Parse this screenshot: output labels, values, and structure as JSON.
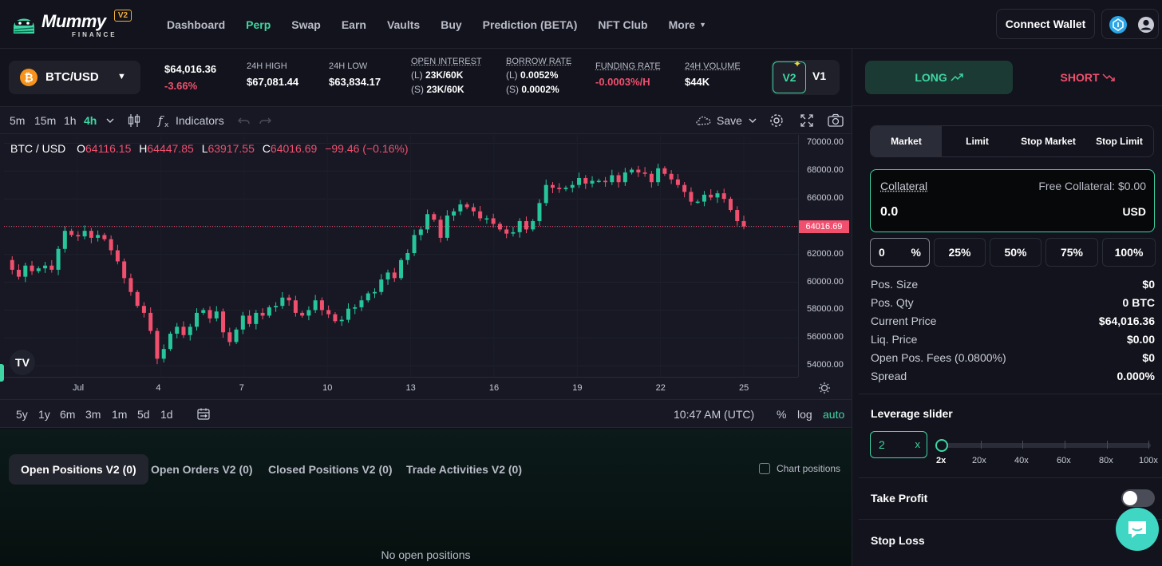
{
  "brand": {
    "name": "Mummy",
    "sub": "FINANCE",
    "badge": "V2"
  },
  "nav": {
    "items": [
      {
        "label": "Dashboard"
      },
      {
        "label": "Perp",
        "active": true
      },
      {
        "label": "Swap"
      },
      {
        "label": "Earn"
      },
      {
        "label": "Vaults"
      },
      {
        "label": "Buy"
      },
      {
        "label": "Prediction (BETA)"
      },
      {
        "label": "NFT Club"
      },
      {
        "label": "More"
      }
    ],
    "connect_label": "Connect Wallet"
  },
  "ticker": {
    "pair": "BTC/USD",
    "price": "$64,016.36",
    "change": "-3.66%",
    "high_label": "24H HIGH",
    "high": "$67,081.44",
    "low_label": "24H LOW",
    "low": "$63,834.17",
    "oi_label": "OPEN INTEREST",
    "oi_long_prefix": "(L)",
    "oi_long": "23K/60K",
    "oi_short_prefix": "(S)",
    "oi_short": "23K/60K",
    "borrow_label": "BORROW RATE",
    "borrow_long_prefix": "(L)",
    "borrow_long": "0.0052%",
    "borrow_short_prefix": "(S)",
    "borrow_short": "0.0002%",
    "funding_label": "FUNDING RATE",
    "funding": "-0.0003%/H",
    "volume_label": "24H VOLUME",
    "volume": "$44K",
    "version_active": "V2",
    "version_other": "V1"
  },
  "chart_toolbar": {
    "timeframes": [
      "5m",
      "15m",
      "1h",
      "4h"
    ],
    "active_timeframe": "4h",
    "indicators_label": "Indicators",
    "save_label": "Save"
  },
  "chart_data": {
    "type": "candlestick",
    "symbol": "BTC / USD",
    "ohlc_legend": {
      "o_label": "O",
      "o": "64116.15",
      "h_label": "H",
      "h": "64447.85",
      "l_label": "L",
      "l": "63917.55",
      "c_label": "C",
      "c": "64016.69",
      "change": "−99.46 (−0.16%)"
    },
    "y_ticks": [
      "70000.00",
      "68000.00",
      "66000.00",
      "64000.00",
      "62000.00",
      "60000.00",
      "58000.00",
      "56000.00",
      "54000.00"
    ],
    "ylim": [
      53200,
      70600
    ],
    "current_price": 64016.69,
    "current_price_label": "64016.69",
    "x_ticks": [
      "Jul",
      "4",
      "7",
      "10",
      "13",
      "16",
      "19",
      "22",
      "25"
    ],
    "close_path": [
      61600,
      60900,
      60400,
      61200,
      60800,
      61000,
      61200,
      60900,
      62400,
      63700,
      63400,
      63300,
      63700,
      63200,
      63400,
      63100,
      62300,
      61500,
      60300,
      59300,
      58300,
      57800,
      56500,
      54500,
      55200,
      56300,
      56800,
      56200,
      56800,
      57800,
      58000,
      57400,
      57900,
      56400,
      55700,
      56600,
      57600,
      57000,
      57800,
      57600,
      58200,
      58300,
      58900,
      58700,
      57800,
      57600,
      58000,
      58700,
      58000,
      57700,
      57200,
      57300,
      58100,
      58200,
      58700,
      59200,
      59300,
      60200,
      60700,
      60300,
      61600,
      62100,
      63400,
      63800,
      64900,
      64500,
      63200,
      64800,
      65100,
      65600,
      65400,
      65100,
      64600,
      64600,
      64200,
      63800,
      63500,
      63600,
      64400,
      63800,
      64400,
      65700,
      67000,
      66800,
      66700,
      66800,
      67000,
      67500,
      67100,
      67300,
      67300,
      67200,
      67700,
      67200,
      67900,
      68100,
      67900,
      67800,
      67200,
      68200,
      67800,
      67400,
      67000,
      66500,
      65800,
      65800,
      66300,
      66100,
      66400,
      66000,
      65200,
      64400,
      64016
    ]
  },
  "range_bar": {
    "ranges": [
      "5y",
      "1y",
      "6m",
      "3m",
      "1m",
      "5d",
      "1d"
    ],
    "time": "10:47 AM (UTC)",
    "pct": "%",
    "log": "log",
    "auto": "auto"
  },
  "positions": {
    "tabs": [
      "Open Positions V2 (0)",
      "Open Orders V2 (0)",
      "Closed Positions V2 (0)",
      "Trade Activities V2 (0)"
    ],
    "chart_positions_label": "Chart positions",
    "empty": "No open positions"
  },
  "trade": {
    "long_label": "LONG",
    "short_label": "SHORT",
    "order_types": [
      "Market",
      "Limit",
      "Stop Market",
      "Stop Limit"
    ],
    "collateral_label": "Collateral",
    "free_collateral": "Free Collateral: $0.00",
    "collateral_value": "0.0",
    "collateral_unit": "USD",
    "pct_first_value": "0",
    "pct_first_sign": "%",
    "pct_options": [
      "25%",
      "50%",
      "75%",
      "100%"
    ],
    "info": [
      {
        "label": "Pos. Size",
        "value": "$0"
      },
      {
        "label": "Pos. Qty",
        "value": "0 BTC"
      },
      {
        "label": "Current Price",
        "value": "$64,016.36"
      },
      {
        "label": "Liq. Price",
        "value": "$0.00"
      },
      {
        "label": "Open Pos. Fees (0.0800%)",
        "value": "$0"
      },
      {
        "label": "Spread",
        "value": "0.000%"
      }
    ],
    "leverage_title": "Leverage slider",
    "leverage_value": "2",
    "leverage_unit": "x",
    "leverage_marks": [
      "2x",
      "20x",
      "40x",
      "60x",
      "80x",
      "100x"
    ],
    "take_profit_label": "Take Profit",
    "take_profit_on": false,
    "stop_loss_label": "Stop Loss"
  }
}
